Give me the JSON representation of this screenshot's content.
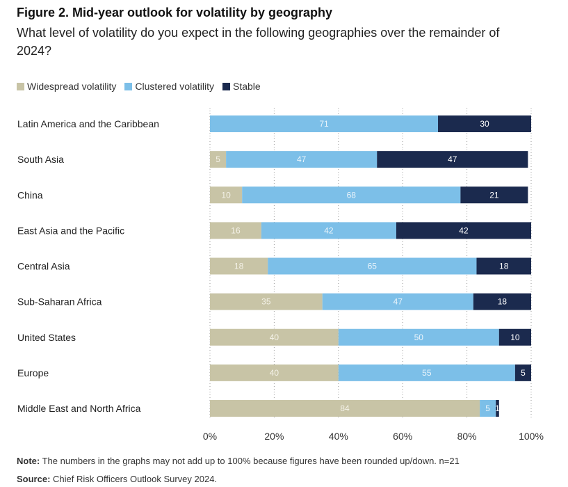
{
  "figure": {
    "title": "Figure 2. Mid-year outlook for volatility by geography",
    "subtitle": "What level of volatility do you expect in the following geographies over the remainder of 2024?"
  },
  "footer": {
    "note_label": "Note:",
    "note_text": " The numbers in the graphs may not add up to 100% because figures have been rounded up/down. n=21",
    "source_label": "Source:",
    "source_text": " Chief Risk Officers Outlook Survey 2024."
  },
  "chart_data": {
    "type": "bar",
    "orientation": "horizontal",
    "stacked": true,
    "categories": [
      "Latin America and the Caribbean",
      "South Asia",
      "China",
      "East Asia and the Pacific",
      "Central Asia",
      "Sub-Saharan Africa",
      "United States",
      "Europe",
      "Middle East and North Africa"
    ],
    "series": [
      {
        "name": "Widespread volatility",
        "color": "#c8c4a6",
        "values": [
          0,
          5,
          10,
          16,
          18,
          35,
          40,
          40,
          84
        ]
      },
      {
        "name": "Clustered volatility",
        "color": "#7cbfe8",
        "values": [
          71,
          47,
          68,
          42,
          65,
          47,
          50,
          55,
          5
        ]
      },
      {
        "name": "Stable",
        "color": "#1b2a4e",
        "values": [
          30,
          47,
          21,
          42,
          18,
          18,
          10,
          5,
          1
        ]
      }
    ],
    "xlim": [
      0,
      100
    ],
    "xticks": [
      "0%",
      "20%",
      "40%",
      "60%",
      "80%",
      "100%"
    ],
    "legend_position": "top-left",
    "grid": true
  }
}
